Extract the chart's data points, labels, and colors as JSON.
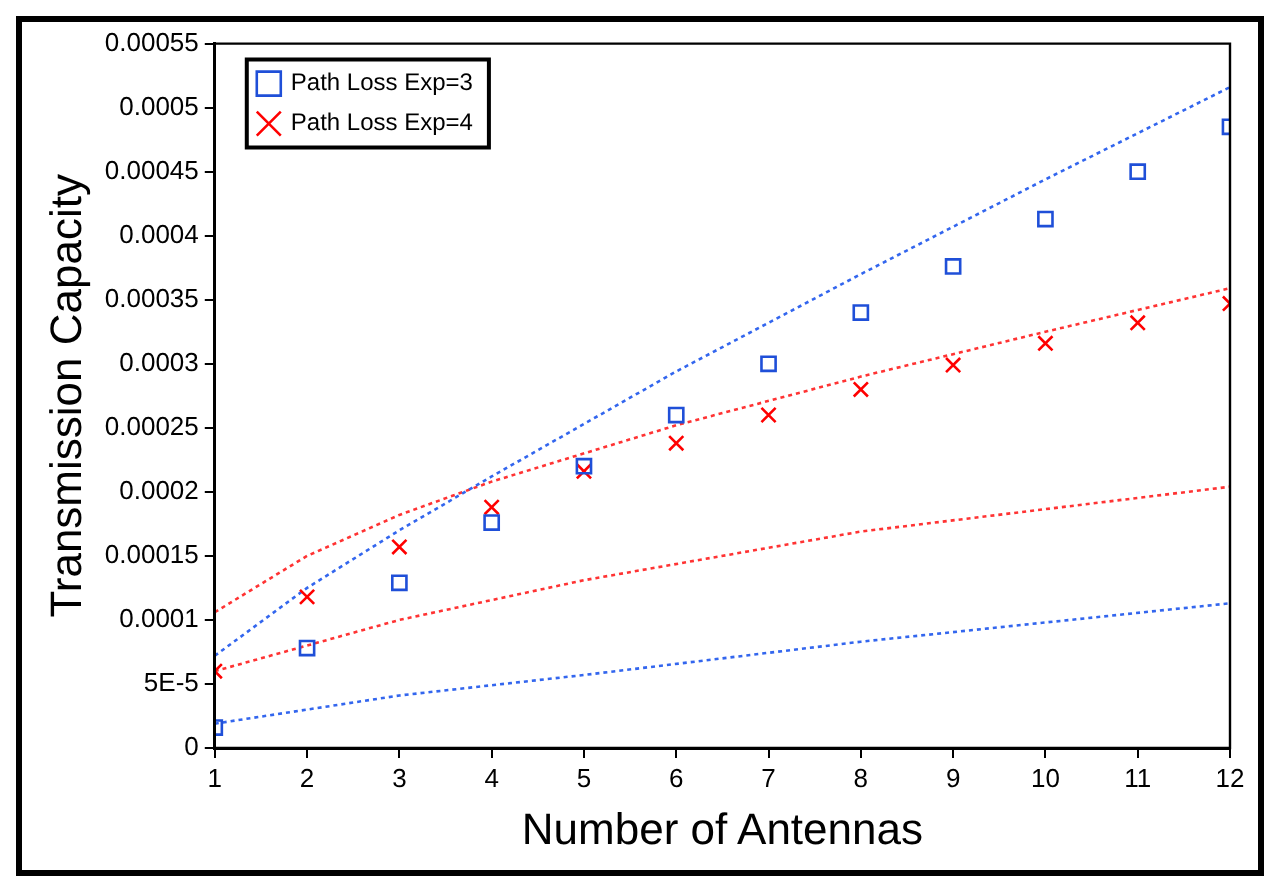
{
  "chart_data": {
    "type": "scatter",
    "xlabel": "Number of Antennas",
    "ylabel": "Transmission Capacity",
    "xlim": [
      1,
      12
    ],
    "xticks": [
      1,
      2,
      3,
      4,
      5,
      6,
      7,
      8,
      9,
      10,
      11,
      12
    ],
    "ylim": [
      0,
      0.00055
    ],
    "yticks": [
      0,
      {
        "value": 5e-05,
        "label": "5E-5"
      },
      0.0001,
      0.00015,
      0.0002,
      0.00025,
      0.0003,
      0.00035,
      0.0004,
      0.00045,
      0.0005,
      0.00055
    ],
    "grid": false,
    "legend": "top left",
    "series": [
      {
        "name": "Path Loss Exp=3",
        "type": "scatter",
        "marker": "square",
        "color": "#1f4fd8",
        "x": [
          1,
          2,
          3,
          4,
          5,
          6,
          7,
          8,
          9,
          10,
          11,
          12
        ],
        "values": [
          1.6e-05,
          7.8e-05,
          0.000129,
          0.000176,
          0.00022,
          0.00026,
          0.0003,
          0.00034,
          0.000376,
          0.000413,
          0.00045,
          0.000485
        ]
      },
      {
        "name": "Path Loss Exp=4",
        "type": "scatter",
        "marker": "cross",
        "color": "#ff0000",
        "x": [
          1,
          2,
          3,
          4,
          5,
          6,
          7,
          8,
          9,
          10,
          11,
          12
        ],
        "values": [
          6e-05,
          0.000118,
          0.000157,
          0.000188,
          0.000216,
          0.000238,
          0.00026,
          0.00028,
          0.000299,
          0.000316,
          0.000332,
          0.000347
        ]
      },
      {
        "type": "line",
        "marker": "none",
        "line_style": "dotted",
        "color": "#3366ee",
        "x": [
          1,
          2,
          3,
          4,
          6,
          8,
          10,
          12
        ],
        "values": [
          7.2e-05,
          0.000125,
          0.00017,
          0.000212,
          0.000294,
          0.00037,
          0.000444,
          0.000516
        ]
      },
      {
        "type": "line",
        "marker": "none",
        "line_style": "dotted",
        "color": "#ff3333",
        "x": [
          1,
          2,
          3,
          4,
          6,
          8,
          10,
          12
        ],
        "values": [
          0.000106,
          0.00015,
          0.000182,
          0.000208,
          0.000252,
          0.00029,
          0.000325,
          0.000359
        ]
      },
      {
        "type": "line",
        "marker": "none",
        "line_style": "dotted",
        "color": "#ff3333",
        "x": [
          1,
          3,
          5,
          8,
          12
        ],
        "values": [
          6e-05,
          0.0001,
          0.000131,
          0.000169,
          0.000204
        ]
      },
      {
        "type": "line",
        "marker": "none",
        "line_style": "dotted",
        "color": "#3366ee",
        "x": [
          1,
          3,
          5,
          8,
          12
        ],
        "values": [
          1.9e-05,
          4.1e-05,
          5.7e-05,
          8.3e-05,
          0.000113
        ]
      }
    ]
  }
}
